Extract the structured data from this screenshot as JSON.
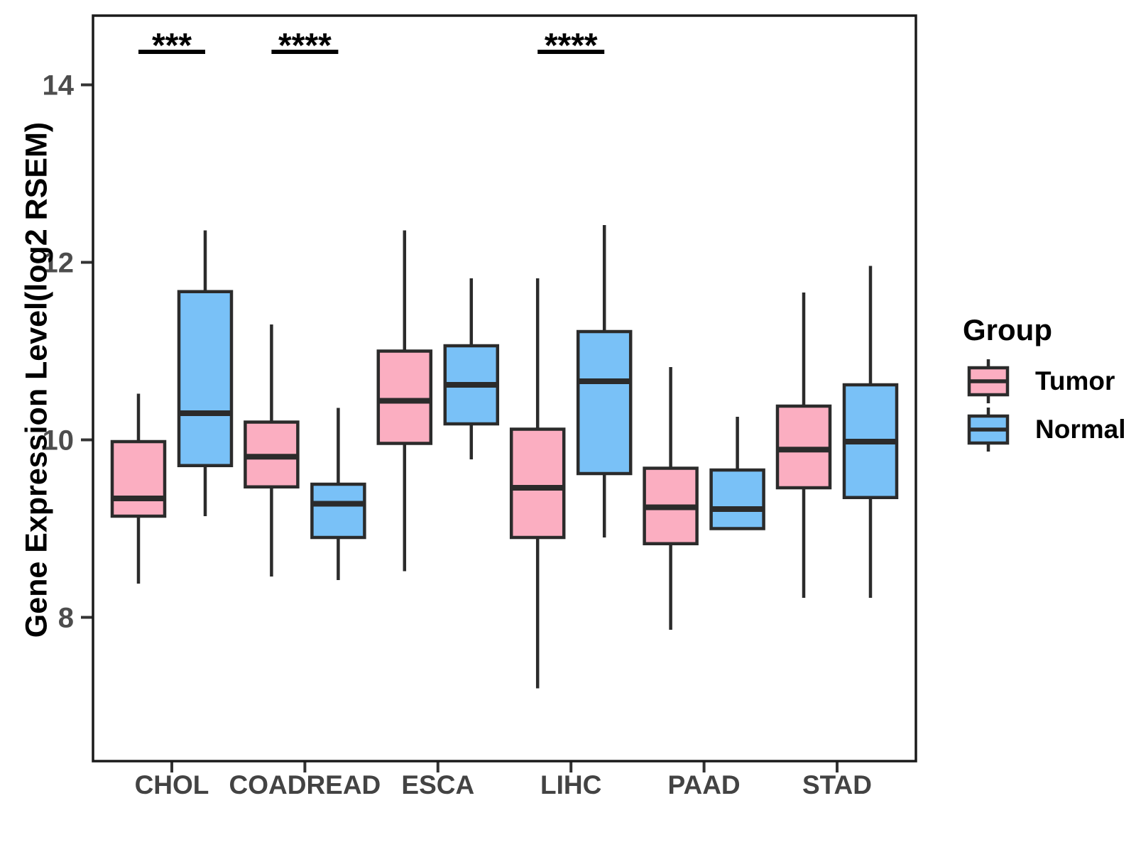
{
  "chart_data": {
    "type": "boxplot",
    "title": "",
    "xlabel": "",
    "ylabel": "Gene Expression Level(log2 RSEM)",
    "categories": [
      "CHOL",
      "COADREAD",
      "ESCA",
      "LIHC",
      "PAAD",
      "STAD"
    ],
    "y_ticks": [
      8,
      10,
      12,
      14
    ],
    "ylim": [
      6.38,
      14.78
    ],
    "grid": "off",
    "legend_title": "Group",
    "legend_position": "right",
    "series": [
      {
        "name": "Tumor",
        "fill": "#FBAEC1",
        "boxes": [
          {
            "category": "CHOL",
            "whisker_low": 8.38,
            "q1": 9.14,
            "median": 9.34,
            "q3": 9.98,
            "whisker_high": 10.52
          },
          {
            "category": "COADREAD",
            "whisker_low": 8.46,
            "q1": 9.47,
            "median": 9.81,
            "q3": 10.2,
            "whisker_high": 11.3
          },
          {
            "category": "ESCA",
            "whisker_low": 8.52,
            "q1": 9.96,
            "median": 10.44,
            "q3": 11.0,
            "whisker_high": 12.36
          },
          {
            "category": "LIHC",
            "whisker_low": 7.2,
            "q1": 8.9,
            "median": 9.46,
            "q3": 10.12,
            "whisker_high": 11.82
          },
          {
            "category": "PAAD",
            "whisker_low": 7.86,
            "q1": 8.83,
            "median": 9.24,
            "q3": 9.68,
            "whisker_high": 10.82
          },
          {
            "category": "STAD",
            "whisker_low": 8.22,
            "q1": 9.46,
            "median": 9.89,
            "q3": 10.38,
            "whisker_high": 11.66
          }
        ]
      },
      {
        "name": "Normal",
        "fill": "#79C1F7",
        "boxes": [
          {
            "category": "CHOL",
            "whisker_low": 9.14,
            "q1": 9.71,
            "median": 10.3,
            "q3": 11.67,
            "whisker_high": 12.36
          },
          {
            "category": "COADREAD",
            "whisker_low": 8.42,
            "q1": 8.9,
            "median": 9.28,
            "q3": 9.5,
            "whisker_high": 10.36
          },
          {
            "category": "ESCA",
            "whisker_low": 9.78,
            "q1": 10.18,
            "median": 10.62,
            "q3": 11.06,
            "whisker_high": 11.82
          },
          {
            "category": "LIHC",
            "whisker_low": 8.9,
            "q1": 9.62,
            "median": 10.66,
            "q3": 11.22,
            "whisker_high": 12.42
          },
          {
            "category": "PAAD",
            "whisker_low": 9.0,
            "q1": 9.0,
            "median": 9.22,
            "q3": 9.66,
            "whisker_high": 10.26
          },
          {
            "category": "STAD",
            "whisker_low": 8.22,
            "q1": 9.35,
            "median": 9.98,
            "q3": 10.62,
            "whisker_high": 11.96
          }
        ]
      }
    ],
    "annotations": [
      {
        "category": "CHOL",
        "label": "***"
      },
      {
        "category": "COADREAD",
        "label": "****"
      },
      {
        "category": "LIHC",
        "label": "****"
      }
    ],
    "colors": {
      "background": "#ffffff",
      "box_stroke": "#2b2b2b",
      "panel_border": "#1a1a1a",
      "tick": "#333333",
      "y_tick_text": "#4d4d4d",
      "x_tick_text": "#434343",
      "axis_title": "#000000",
      "annotation": "#000000",
      "legend_text": "#000000"
    }
  }
}
